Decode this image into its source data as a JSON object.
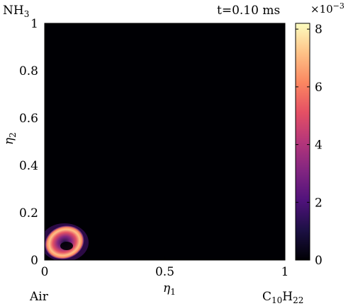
{
  "corner_labels": {
    "top_left": {
      "base": "NH",
      "sub": "3",
      "color": "#e8202a"
    },
    "top_right": "t=0.10 ms",
    "bottom_left": {
      "text": "Air",
      "color": "#2424e0"
    },
    "bottom_right": {
      "base": "C",
      "sub1": "10",
      "mid": "H",
      "sub2": "22",
      "color": "#e020e0"
    }
  },
  "colorbar": {
    "exponent_base": "×10",
    "exponent_power": "−3",
    "ticks": [
      {
        "value": 0,
        "label": "0"
      },
      {
        "value": 2,
        "label": "2"
      },
      {
        "value": 4,
        "label": "4"
      },
      {
        "value": 6,
        "label": "6"
      },
      {
        "value": 8,
        "label": "8"
      }
    ],
    "vmin": 0,
    "vmax": 8.2,
    "colormap": [
      "#000004",
      "#1c1044",
      "#4f127b",
      "#812581",
      "#b5367a",
      "#e55064",
      "#fb8761",
      "#fec287",
      "#fcfdbf"
    ]
  },
  "chart_data": {
    "type": "heatmap",
    "title": "",
    "xlabel_base": "η",
    "xlabel_sub": "1",
    "ylabel_base": "η",
    "ylabel_sub": "2",
    "xlim": [
      0,
      1
    ],
    "ylim": [
      0,
      1
    ],
    "xticks": [
      {
        "value": 0,
        "label": "0"
      },
      {
        "value": 0.5,
        "label": "0.5"
      },
      {
        "value": 1,
        "label": "1"
      }
    ],
    "yticks": [
      {
        "value": 0,
        "label": "0"
      },
      {
        "value": 0.2,
        "label": "0.2"
      },
      {
        "value": 0.4,
        "label": "0.4"
      },
      {
        "value": 0.6,
        "label": "0.6"
      },
      {
        "value": 0.8,
        "label": "0.8"
      },
      {
        "value": 1,
        "label": "1"
      }
    ],
    "background_value": 0,
    "features": [
      {
        "name": "ring",
        "x": 0.085,
        "y": 0.075,
        "peak": 8.2
      }
    ]
  }
}
